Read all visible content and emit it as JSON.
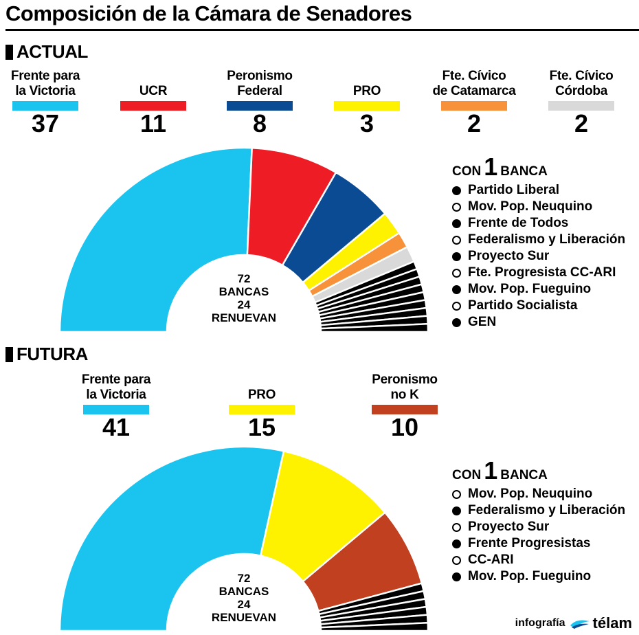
{
  "title": "Composición de la Cámara de Senadores",
  "actual": {
    "heading": "ACTUAL",
    "parties": [
      {
        "name_line1": "Frente para",
        "name_line2": "la Victoria",
        "seats": "37",
        "color": "#1ac4ef"
      },
      {
        "name_line1": "",
        "name_line2": "UCR",
        "seats": "11",
        "color": "#ee1c25"
      },
      {
        "name_line1": "Peronismo",
        "name_line2": "Federal",
        "seats": "8",
        "color": "#0b4b94"
      },
      {
        "name_line1": "",
        "name_line2": "PRO",
        "seats": "3",
        "color": "#fff200"
      },
      {
        "name_line1": "Fte. Cívico",
        "name_line2": "de Catamarca",
        "seats": "2",
        "color": "#f7923a"
      },
      {
        "name_line1": "Fte. Cívico",
        "name_line2": "Córdoba",
        "seats": "2",
        "color": "#d9d9d9"
      }
    ],
    "center_line1": "72",
    "center_line2": "BANCAS",
    "center_line3": "24",
    "center_line4": "RENUEVAN",
    "legend_prefix": "CON",
    "legend_number": "1",
    "legend_suffix": "BANCA",
    "single_seat": [
      {
        "name": "Partido Liberal",
        "marker": "filled"
      },
      {
        "name": "Mov. Pop. Neuquino",
        "marker": "empty"
      },
      {
        "name": "Frente de Todos",
        "marker": "filled"
      },
      {
        "name": "Federalismo y Liberación",
        "marker": "empty"
      },
      {
        "name": "Proyecto Sur",
        "marker": "filled"
      },
      {
        "name": "Fte. Progresista CC-ARI",
        "marker": "empty"
      },
      {
        "name": "Mov. Pop. Fueguino",
        "marker": "filled"
      },
      {
        "name": "Partido Socialista",
        "marker": "empty"
      },
      {
        "name": "GEN",
        "marker": "filled"
      }
    ]
  },
  "futura": {
    "heading": "FUTURA",
    "parties": [
      {
        "name_line1": "Frente para",
        "name_line2": "la Victoria",
        "seats": "41",
        "color": "#1ac4ef"
      },
      {
        "name_line1": "",
        "name_line2": "PRO",
        "seats": "15",
        "color": "#fff200"
      },
      {
        "name_line1": "Peronismo",
        "name_line2": "no K",
        "seats": "10",
        "color": "#c0401f"
      }
    ],
    "center_line1": "72",
    "center_line2": "BANCAS",
    "center_line3": "24",
    "center_line4": "RENUEVAN",
    "legend_prefix": "CON",
    "legend_number": "1",
    "legend_suffix": "BANCA",
    "single_seat": [
      {
        "name": "Mov. Pop. Neuquino",
        "marker": "empty"
      },
      {
        "name": "Federalismo y Liberación",
        "marker": "filled"
      },
      {
        "name": "Proyecto Sur",
        "marker": "empty"
      },
      {
        "name": "Frente Progresistas",
        "marker": "filled"
      },
      {
        "name": "CC-ARI",
        "marker": "empty"
      },
      {
        "name": "Mov. Pop. Fueguino",
        "marker": "filled"
      }
    ]
  },
  "credit": {
    "prefix": "infografía",
    "brand": "télam"
  },
  "chart_data": [
    {
      "type": "pie",
      "title": "ACTUAL",
      "total": 72,
      "categories": [
        "Frente para la Victoria",
        "UCR",
        "Peronismo Federal",
        "PRO",
        "Fte. Cívico de Catamarca",
        "Fte. Cívico Córdoba",
        "Partido Liberal",
        "Mov. Pop. Neuquino",
        "Frente de Todos",
        "Federalismo y Liberación",
        "Proyecto Sur",
        "Fte. Progresista CC-ARI",
        "Mov. Pop. Fueguino",
        "Partido Socialista",
        "GEN"
      ],
      "values": [
        37,
        11,
        8,
        3,
        2,
        2,
        1,
        1,
        1,
        1,
        1,
        1,
        1,
        1,
        1
      ],
      "colors": [
        "#1ac4ef",
        "#ee1c25",
        "#0b4b94",
        "#fff200",
        "#f7923a",
        "#d9d9d9",
        "#000000",
        "#000000",
        "#000000",
        "#000000",
        "#000000",
        "#000000",
        "#000000",
        "#000000",
        "#000000"
      ]
    },
    {
      "type": "pie",
      "title": "FUTURA",
      "total": 72,
      "categories": [
        "Frente para la Victoria",
        "PRO",
        "Peronismo no K",
        "Mov. Pop. Neuquino",
        "Federalismo y Liberación",
        "Proyecto Sur",
        "Frente Progresistas",
        "CC-ARI",
        "Mov. Pop. Fueguino"
      ],
      "values": [
        41,
        15,
        10,
        1,
        1,
        1,
        1,
        1,
        1
      ],
      "colors": [
        "#1ac4ef",
        "#fff200",
        "#c0401f",
        "#000000",
        "#000000",
        "#000000",
        "#000000",
        "#000000",
        "#000000"
      ]
    }
  ]
}
